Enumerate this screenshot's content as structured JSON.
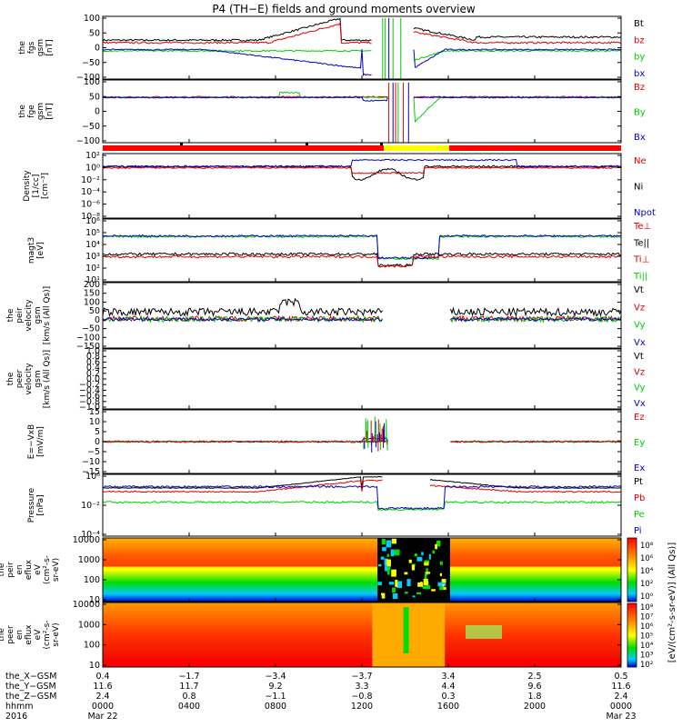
{
  "title": "P4 (TH−E) fields and ground moments overview",
  "panels": [
    {
      "ylabel": [
        "the",
        "fgs",
        "gsm",
        "[nT]"
      ],
      "yticks": [
        "100",
        "50",
        "0",
        "−50",
        "−100"
      ],
      "legend": [
        {
          "text": "Bt",
          "color": "#000000"
        },
        {
          "text": "bz",
          "color": "#e00000"
        },
        {
          "text": "by",
          "color": "#00cc00"
        },
        {
          "text": "bx",
          "color": "#0000cc"
        }
      ]
    },
    {
      "ylabel": [
        "the",
        "fge",
        "gsm",
        "[nT]"
      ],
      "yticks": [
        "100",
        "50",
        "0",
        "−50",
        "−100"
      ],
      "legend": [
        {
          "text": "Bz",
          "color": "#e00000"
        },
        {
          "text": "By",
          "color": "#00cc00"
        },
        {
          "text": "Bx",
          "color": "#0000cc"
        }
      ]
    },
    {
      "ylabel": [
        "Density",
        "[1/cc]",
        "[cm⁻³]"
      ],
      "yticks": [
        "10²",
        "10⁰",
        "10⁻²",
        "10⁻⁴",
        "10⁻⁶",
        "10⁻⁸"
      ],
      "legend": [
        {
          "text": "Ne",
          "color": "#e00000"
        },
        {
          "text": "Ni",
          "color": "#000000"
        },
        {
          "text": "Npot",
          "color": "#0000cc"
        }
      ]
    },
    {
      "ylabel": [
        "magt3",
        "[eV]"
      ],
      "yticks": [
        "10⁶",
        "10⁵",
        "10⁴",
        "10³",
        "10²",
        "10¹"
      ],
      "legend": [
        {
          "text": "Te⊥",
          "color": "#e00000"
        },
        {
          "text": "Te||",
          "color": "#000000"
        },
        {
          "text": "Ti⊥",
          "color": "#e00000"
        },
        {
          "text": "Ti||",
          "color": "#00cc00"
        }
      ]
    },
    {
      "ylabel": [
        "the",
        "peir",
        "velocity",
        "gsm",
        "[km/s (All Qs)]"
      ],
      "yticks": [
        "200",
        "150",
        "100",
        "50",
        "0",
        "−50",
        "−100",
        "−150"
      ],
      "legend": [
        {
          "text": "Vt",
          "color": "#000000"
        },
        {
          "text": "Vz",
          "color": "#e00000"
        },
        {
          "text": "Vy",
          "color": "#00cc00"
        },
        {
          "text": "Vx",
          "color": "#0000cc"
        }
      ]
    },
    {
      "ylabel": [
        "the",
        "peer",
        "velocity",
        "gsm",
        "[km/s (All Qs)]"
      ],
      "yticks": [
        "1.0",
        "0.8",
        "0.6",
        "0.4",
        "0.2",
        "0.0",
        "−0.2",
        "−0.4",
        "−0.6",
        "−0.8",
        "−1.0"
      ],
      "legend": [
        {
          "text": "Vt",
          "color": "#000000"
        },
        {
          "text": "Vz",
          "color": "#e00000"
        },
        {
          "text": "Vy",
          "color": "#00cc00"
        },
        {
          "text": "Vx",
          "color": "#0000cc"
        }
      ]
    },
    {
      "ylabel": [
        "E=−VxB",
        "[mV/m]"
      ],
      "yticks": [
        "15",
        "10",
        "5",
        "0",
        "−5",
        "−10",
        "−15"
      ],
      "legend": [
        {
          "text": "Ez",
          "color": "#e00000"
        },
        {
          "text": "Ey",
          "color": "#00cc00"
        },
        {
          "text": "Ex",
          "color": "#0000cc"
        }
      ]
    },
    {
      "ylabel": [
        "Pressure",
        "[nPa]"
      ],
      "yticks": [
        "10⁰",
        "10⁻²",
        "10⁻⁴"
      ],
      "legend": [
        {
          "text": "Pt",
          "color": "#000000"
        },
        {
          "text": "Pb",
          "color": "#e00000"
        },
        {
          "text": "Pe",
          "color": "#00cc00"
        },
        {
          "text": "Pi",
          "color": "#0000cc"
        }
      ]
    },
    {
      "ylabel": [
        "the",
        "peir",
        "en",
        "eflux",
        "eV",
        "(cm²-s-",
        "sr-eV)"
      ],
      "yticks": [
        "10000",
        "1000",
        "100",
        "10"
      ]
    },
    {
      "ylabel": [
        "the",
        "peer",
        "en",
        "eflux",
        "eV",
        "(cm²-s-",
        "sr-eV)"
      ],
      "yticks": [
        "10000",
        "1000",
        "100",
        "10"
      ]
    }
  ],
  "colorbar": {
    "label": "[eV/(cm²-s-sr-eV)] (All Qs)]",
    "ticks_top": [
      "10⁸",
      "10⁶",
      "10⁴",
      "10²",
      "10⁰"
    ],
    "ticks_bottom": [
      "10⁸",
      "10⁷",
      "10⁶",
      "10⁵",
      "10⁴",
      "10³",
      "10²"
    ]
  },
  "xaxis": {
    "row_labels": [
      "the_X−GSM",
      "the_Y−GSM",
      "the_Z−GSM",
      "hhmm",
      "2016"
    ],
    "columns": [
      {
        "x": "0.4",
        "y": "11.6",
        "z": "2.4",
        "hhmm": "0000",
        "date": "Mar 22"
      },
      {
        "x": "−1.7",
        "y": "11.7",
        "z": "0.8",
        "hhmm": "0400",
        "date": ""
      },
      {
        "x": "−3.4",
        "y": "9.2",
        "z": "−1.1",
        "hhmm": "0800",
        "date": ""
      },
      {
        "x": "−3.7",
        "y": "3.3",
        "z": "−0.8",
        "hhmm": "1200",
        "date": ""
      },
      {
        "x": "3.4",
        "y": "4.4",
        "z": "0.3",
        "hhmm": "1600",
        "date": ""
      },
      {
        "x": "2.5",
        "y": "9.6",
        "z": "1.8",
        "hhmm": "2000",
        "date": ""
      },
      {
        "x": "0.5",
        "y": "11.6",
        "z": "2.4",
        "hhmm": "0000",
        "date": "Mar 23"
      }
    ]
  },
  "chart_data": {
    "type": "line",
    "x_hhmm": [
      "0000",
      "0400",
      "0800",
      "1200",
      "1600",
      "2000",
      "0000"
    ],
    "panels": [
      {
        "name": "the_fgs_gsm",
        "ylim": [
          -100,
          100
        ],
        "series": [
          {
            "name": "Bt",
            "values": [
              25,
              25,
              30,
              90,
              90,
              40,
              25
            ]
          },
          {
            "name": "bz",
            "values": [
              20,
              15,
              20,
              80,
              70,
              35,
              20
            ]
          },
          {
            "name": "by",
            "values": [
              -10,
              -10,
              -5,
              0,
              -20,
              -10,
              -10
            ]
          },
          {
            "name": "bx",
            "values": [
              -5,
              -5,
              -15,
              -60,
              -40,
              -5,
              0
            ]
          }
        ]
      },
      {
        "name": "the_fge_gsm",
        "ylim": [
          -120,
          40
        ],
        "series": [
          {
            "name": "Bz",
            "values": [
              0,
              0,
              5,
              10,
              0,
              0,
              0
            ]
          },
          {
            "name": "By",
            "values": [
              0,
              0,
              15,
              -100,
              -15,
              0,
              0
            ]
          },
          {
            "name": "Bx",
            "values": [
              0,
              0,
              -5,
              20,
              0,
              0,
              0
            ]
          }
        ]
      },
      {
        "name": "density",
        "yscale": "log",
        "ylim": [
          1e-08,
          100
        ],
        "series": [
          {
            "name": "Ne",
            "values": [
              0.3,
              0.5,
              0.5,
              0.02,
              1,
              0.5,
              0.5
            ]
          },
          {
            "name": "Ni",
            "values": [
              0.3,
              0.5,
              0.5,
              0.003,
              0.5,
              0.5,
              0.5
            ]
          },
          {
            "name": "Npot",
            "values": [
              0.5,
              0.8,
              0.5,
              10,
              2,
              1,
              1
            ]
          }
        ]
      },
      {
        "name": "magt3",
        "yscale": "log",
        "ylim": [
          10,
          1000000
        ],
        "series": [
          {
            "name": "Te⊥",
            "values": [
              500,
              800,
              800,
              100,
              400,
              500,
              600
            ]
          },
          {
            "name": "Te||",
            "values": [
              600,
              900,
              900,
              150,
              500,
              600,
              700
            ]
          },
          {
            "name": "Ti⊥",
            "values": [
              6000,
              6000,
              5000,
              200,
              5000,
              5000,
              6000
            ]
          },
          {
            "name": "Ti||",
            "values": [
              5000,
              5000,
              4000,
              150,
              4000,
              4000,
              5000
            ]
          }
        ]
      },
      {
        "name": "peir_velocity_gsm",
        "ylim": [
          -150,
          200
        ],
        "series": [
          {
            "name": "Vt",
            "values": [
              40,
              40,
              80,
              50,
              30,
              40,
              40
            ]
          },
          {
            "name": "Vz",
            "values": [
              0,
              0,
              10,
              0,
              0,
              0,
              0
            ]
          },
          {
            "name": "Vy",
            "values": [
              0,
              0,
              -20,
              0,
              0,
              0,
              0
            ]
          },
          {
            "name": "Vx",
            "values": [
              0,
              0,
              0,
              0,
              0,
              0,
              0
            ]
          }
        ]
      },
      {
        "name": "peer_velocity_gsm",
        "ylim": [
          -1,
          1
        ],
        "series": []
      },
      {
        "name": "E=-VxB",
        "ylim": [
          -15,
          15
        ],
        "series": [
          {
            "name": "Ez",
            "values": [
              0,
              0,
              0,
              5,
              0,
              0,
              0
            ]
          },
          {
            "name": "Ey",
            "values": [
              0,
              0,
              0,
              3,
              0,
              0,
              0
            ]
          },
          {
            "name": "Ex",
            "values": [
              0,
              0,
              0,
              2,
              0,
              0,
              0
            ]
          }
        ]
      },
      {
        "name": "pressure",
        "yscale": "log",
        "ylim": [
          1e-05,
          10
        ],
        "series": [
          {
            "name": "Pt",
            "values": [
              0.05,
              0.1,
              0.3,
              5,
              0.5,
              0.1,
              0.05
            ]
          },
          {
            "name": "Pb",
            "values": [
              0.02,
              0.05,
              0.1,
              3,
              0.3,
              0.05,
              0.03
            ]
          },
          {
            "name": "Pe",
            "values": [
              0.005,
              0.005,
              0.005,
              0.0005,
              0.003,
              0.003,
              0.003
            ]
          },
          {
            "name": "Pi",
            "values": [
              0.05,
              0.1,
              0.1,
              0.001,
              0.3,
              0.2,
              0.1
            ]
          }
        ]
      },
      {
        "name": "peir_en_eflux",
        "type": "heatmap",
        "yscale": "log",
        "ylim": [
          5,
          20000
        ]
      },
      {
        "name": "peer_en_eflux",
        "type": "heatmap",
        "yscale": "log",
        "ylim": [
          5,
          20000
        ]
      }
    ]
  }
}
